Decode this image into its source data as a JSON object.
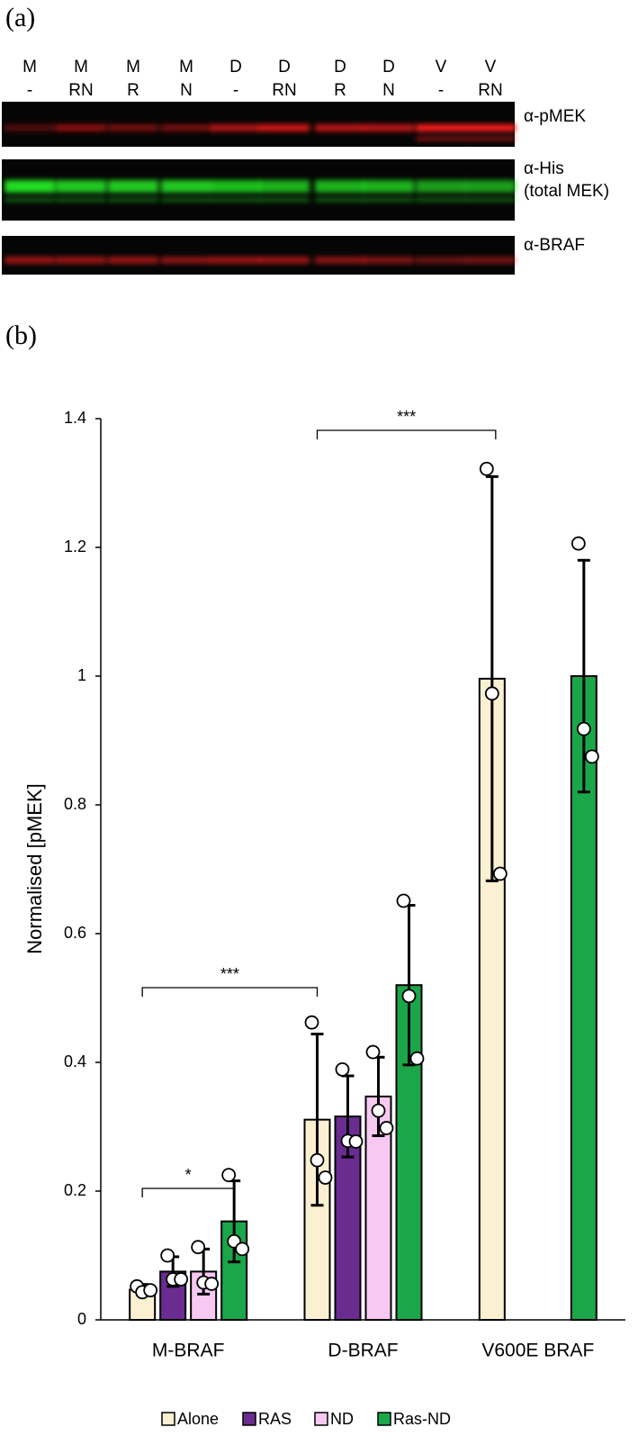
{
  "panel_a": {
    "label": "(a)",
    "lanes": [
      {
        "top": "M",
        "bottom": "-"
      },
      {
        "top": "M",
        "bottom": "RN"
      },
      {
        "top": "M",
        "bottom": "R"
      },
      {
        "top": "M",
        "bottom": "N"
      },
      {
        "top": "D",
        "bottom": "-"
      },
      {
        "top": "D",
        "bottom": "RN"
      },
      {
        "top": "D",
        "bottom": "R"
      },
      {
        "top": "D",
        "bottom": "N"
      },
      {
        "top": "V",
        "bottom": "-"
      },
      {
        "top": "V",
        "bottom": "RN"
      }
    ],
    "antibodies": [
      "α-pMEK",
      "α-His",
      "(total MEK)",
      "α-BRAF"
    ]
  },
  "panel_b": {
    "label": "(b)"
  },
  "chart_data": {
    "type": "bar",
    "y_label": "Normalised [pMEK]",
    "categories": [
      "M-BRAF",
      "D-BRAF",
      "V600E BRAF"
    ],
    "series": [
      {
        "name": "Alone",
        "color": "#fcf0d2",
        "values": [
          0.047,
          0.311,
          0.996
        ],
        "errors": [
          0.008,
          0.133,
          0.314
        ],
        "points": [
          [
            0.052,
            0.043,
            0.046
          ],
          [
            0.462,
            0.248,
            0.221
          ],
          [
            1.322,
            0.973,
            0.693
          ]
        ]
      },
      {
        "name": "RAS",
        "color": "#6a2c91",
        "values": [
          0.075,
          0.316,
          null
        ],
        "errors": [
          0.023,
          0.063,
          null
        ],
        "points": [
          [
            0.1,
            0.063,
            0.063
          ],
          [
            0.389,
            0.278,
            0.277
          ],
          null
        ]
      },
      {
        "name": "ND",
        "color": "#f7c9f2",
        "values": [
          0.075,
          0.347,
          null
        ],
        "errors": [
          0.035,
          0.061,
          null
        ],
        "points": [
          [
            0.113,
            0.058,
            0.056
          ],
          [
            0.416,
            0.325,
            0.298
          ],
          null
        ]
      },
      {
        "name": "Ras-ND",
        "color": "#1ba64a",
        "values": [
          0.153,
          0.52,
          1.0
        ],
        "errors": [
          0.063,
          0.124,
          0.18
        ],
        "points": [
          [
            0.225,
            0.122,
            0.11
          ],
          [
            0.651,
            0.503,
            0.406
          ],
          [
            1.206,
            0.918,
            0.875
          ]
        ]
      }
    ],
    "significance": [
      "*",
      "***",
      "***"
    ],
    "ylim": [
      0,
      1.4
    ],
    "yticks": [
      0,
      0.2,
      0.4,
      0.6,
      0.8,
      1,
      1.2,
      1.4
    ]
  }
}
